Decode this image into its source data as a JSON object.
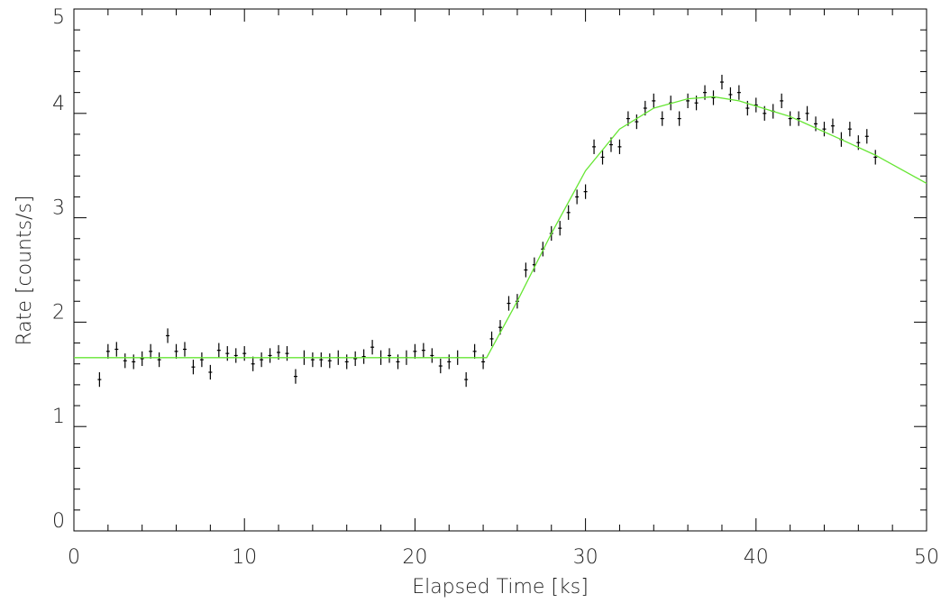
{
  "chart_data": {
    "type": "scatter",
    "x_label": "Elapsed Time [ks]",
    "y_label": "Rate [counts/s]",
    "xlim": [
      0,
      50
    ],
    "ylim": [
      0,
      5
    ],
    "xticks": [
      0,
      10,
      20,
      30,
      40,
      50
    ],
    "yticks": [
      0,
      1,
      2,
      3,
      4,
      5
    ],
    "point_color": "#000000",
    "error": 0.07,
    "x": [
      1.5,
      2,
      2.5,
      3,
      3.5,
      4,
      4.5,
      5,
      5.5,
      6,
      6.5,
      7,
      7.5,
      8,
      8.5,
      9,
      9.5,
      10,
      10.5,
      11,
      11.5,
      12,
      12.5,
      13,
      13.5,
      14,
      14.5,
      15,
      15.5,
      16,
      16.5,
      17,
      17.5,
      18,
      18.5,
      19,
      19.5,
      20,
      20.5,
      21,
      21.5,
      22,
      22.5,
      23,
      23.5,
      24,
      24.5,
      25,
      25.5,
      26,
      26.5,
      27,
      27.5,
      28,
      28.5,
      29,
      29.5,
      30,
      30.5,
      31,
      31.5,
      32,
      32.5,
      33,
      33.5,
      34,
      34.5,
      35,
      35.5,
      36,
      36.5,
      37,
      37.5,
      38,
      38.5,
      39,
      39.5,
      40,
      40.5,
      41,
      41.5,
      42,
      42.5,
      43,
      43.5,
      44,
      44.5,
      45,
      45.5,
      46,
      46.5,
      47
    ],
    "values": [
      1.45,
      1.72,
      1.74,
      1.63,
      1.62,
      1.65,
      1.72,
      1.64,
      1.87,
      1.72,
      1.74,
      1.57,
      1.64,
      1.52,
      1.73,
      1.7,
      1.68,
      1.7,
      1.6,
      1.64,
      1.68,
      1.71,
      1.7,
      1.48,
      1.66,
      1.64,
      1.64,
      1.63,
      1.66,
      1.62,
      1.65,
      1.67,
      1.76,
      1.66,
      1.68,
      1.62,
      1.66,
      1.72,
      1.73,
      1.68,
      1.58,
      1.62,
      1.66,
      1.45,
      1.72,
      1.62,
      1.84,
      1.95,
      2.18,
      2.2,
      2.5,
      2.55,
      2.7,
      2.85,
      2.9,
      3.05,
      3.2,
      3.25,
      3.68,
      3.58,
      3.7,
      3.68,
      3.95,
      3.92,
      4.05,
      4.12,
      3.95,
      4.1,
      3.95,
      4.12,
      4.1,
      4.2,
      4.15,
      4.3,
      4.18,
      4.2,
      4.05,
      4.08,
      4.0,
      4.02,
      4.12,
      3.95,
      3.95,
      4.0,
      3.9,
      3.85,
      3.88,
      3.75,
      3.85,
      3.72,
      3.78,
      3.58
    ],
    "model": {
      "color": "#66e633",
      "x": [
        0,
        24.2,
        26,
        28,
        30,
        32,
        34,
        36,
        37.5,
        39,
        42,
        45,
        47,
        50
      ],
      "values": [
        1.66,
        1.66,
        2.2,
        2.85,
        3.45,
        3.85,
        4.05,
        4.14,
        4.16,
        4.12,
        3.97,
        3.75,
        3.6,
        3.33
      ]
    }
  }
}
